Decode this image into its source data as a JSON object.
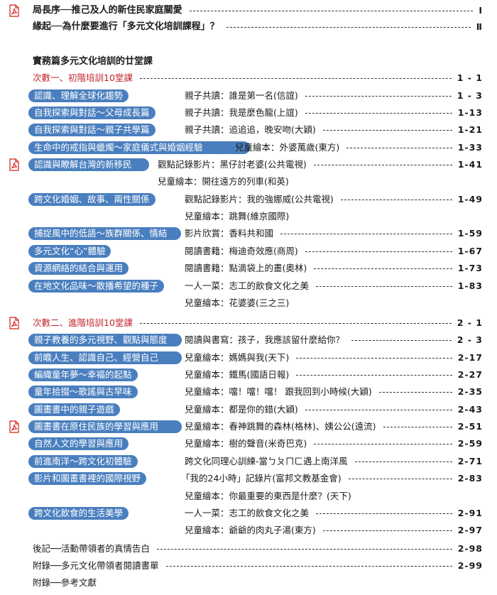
{
  "front": [
    {
      "title": "局長序──推己及人的新住民家庭關愛",
      "page": "Ⅰ"
    },
    {
      "title": "緣起──為什麼要進行「多元文化培訓課程」？",
      "page": "Ⅱ"
    }
  ],
  "section_title": "實務篇多元文化培訓的廿堂課",
  "part1": {
    "title": "次數一、初階培訓10堂課",
    "page": "1 - 1",
    "lessons": [
      {
        "topic": "認識、理解全球化趨勢",
        "material": "親子共讀：誰是第一名(信誼)",
        "page": "1 - 3"
      },
      {
        "topic": "自我探索與對話～父母成長篇",
        "material": "親子共讀：我是麼色龍(上誼)",
        "page": "1-13"
      },
      {
        "topic": "自我探索與對話～親子共學篇",
        "material": "親子共讀：追追追，晚安吻(大穎)",
        "page": "1-21"
      },
      {
        "topic": "生命中的戒指與蠟燭～家庭儀式與婚姻經驗",
        "material": "兒童繪本：外婆萬歲(東方)",
        "page": "1-33"
      },
      {
        "topic": "認識與瞭解台灣的新移民",
        "material": "觀點記錄影片：黑仔討老婆(公共電視)",
        "page": "1-41"
      },
      {
        "material": "兒童繪本：開往遠方的列車(和英)"
      },
      {
        "topic": "跨文化婚姻、故事、兩性關係",
        "material": "觀點記錄影片：我的強娜威(公共電視)",
        "page": "1-49"
      },
      {
        "material": "兒童繪本：跳舞(維京國際)"
      },
      {
        "topic": "捕捉風中的低語～族群關係、情結",
        "material": "影片欣賞：香料共和國",
        "page": "1-59"
      },
      {
        "topic": "多元文化“心”體驗",
        "material": "閱讀書籍：梅迪奇效應(商周)",
        "page": "1-67"
      },
      {
        "topic": "資源網絡的結合與運用",
        "material": "閱讀書籍：點滴袋上的畫(奧林)",
        "page": "1-73"
      },
      {
        "topic": "在地文化品味～散播希望的種子",
        "material": "一人一菜：志工的飲食文化之美",
        "page": "1-83"
      },
      {
        "material": "兒童繪本：花婆婆(三之三)"
      }
    ]
  },
  "part2": {
    "title": "次數二、進階培訓10堂課",
    "page": "2 - 1",
    "lessons": [
      {
        "topic": "親子教養的多元視野、觀點與態度",
        "material": "閱讀與書寫：孩子，我應該留什麼給你？",
        "page": "2 - 3"
      },
      {
        "topic": "前瞻人生、認識自己、經營自己",
        "material": "兒童繪本：媽媽與我(天下)",
        "page": "2-17"
      },
      {
        "topic": "編織童年夢～幸福的起點",
        "material": "兒童繪本：鐵馬(國語日報)",
        "page": "2-27"
      },
      {
        "topic": "童年拾掇～歌謠與古早味",
        "material": "兒童繪本：噹！噹！噹！ 跟我回到小時候(大穎)",
        "page": "2-35"
      },
      {
        "topic": "圖畫書中的親子遊戲",
        "material": "兒童繪本：都是你的錯(大穎)",
        "page": "2-43"
      },
      {
        "topic": "圖畫書在原住民族的學習與應用",
        "material": "兒童繪本：春神跳舞的森林(格林)、姨公公(遠流)",
        "page": "2-51"
      },
      {
        "topic": "自然人文的學習與應用",
        "material": "兒童繪本：樹的聲音(米奇巴克)",
        "page": "2-59"
      },
      {
        "topic": "前進南洋～跨文化初體驗",
        "material": "跨文化同理心訓練-當ㄅㄆㄇㄈ遇上南洋風",
        "page": "2-71"
      },
      {
        "topic": "影片和圖畫書裡的國際視野",
        "material": "「我的24小時」記錄片(富邦文教基金會)",
        "page": "2-83"
      },
      {
        "material": "兒童繪本：你最重要的東西是什麼？(天下)"
      },
      {
        "topic": "跨文化飲食的生活美學",
        "material": "一人一菜：志工的飲食文化之美",
        "page": "2-91"
      },
      {
        "material": "兒童繪本：爺爺的肉丸子湯(東方)",
        "page": "2-97"
      }
    ]
  },
  "back": [
    {
      "title": "後記──活動帶領者的真情告白",
      "page": "2-98"
    },
    {
      "title": "附錄──多元文化帶領者閱讀書單",
      "page": "2-99"
    },
    {
      "title": "附錄──參考文獻"
    }
  ],
  "icons": {
    "pdf": "pdf-file-icon"
  },
  "colors": {
    "accent": "#4a7fbf",
    "part_heading": "#c0262d",
    "pdf_icon": "#d0201a"
  }
}
